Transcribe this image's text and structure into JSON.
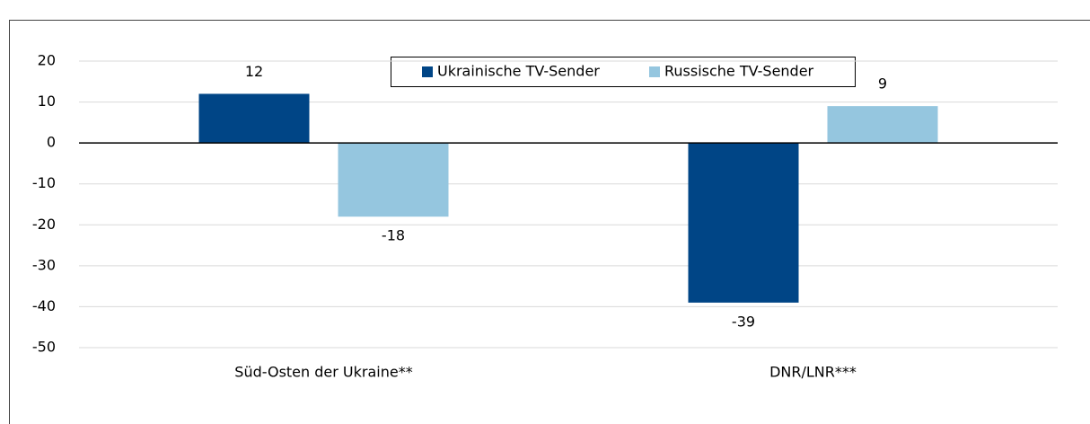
{
  "chart_data": {
    "type": "bar",
    "categories": [
      "Süd-Osten der Ukraine**",
      "DNR/LNR***"
    ],
    "series": [
      {
        "name": "Ukrainische TV-Sender",
        "color": "#004586",
        "values": [
          12,
          -39
        ]
      },
      {
        "name": "Russische TV-Sender",
        "color": "#95c6df",
        "values": [
          -18,
          9
        ]
      }
    ],
    "ylim": [
      -50,
      20
    ],
    "yticks": [
      -50,
      -40,
      -30,
      -20,
      -10,
      0,
      10,
      20
    ],
    "grid": true,
    "legend": "top"
  }
}
